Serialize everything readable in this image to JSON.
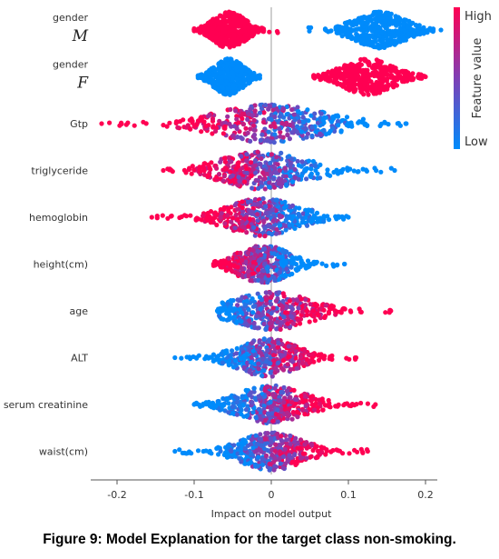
{
  "chart_data": {
    "type": "scatter",
    "subtype": "shap-beeswarm",
    "xlabel": "Impact on model output",
    "xlim": [
      -0.23,
      0.23
    ],
    "x_ticks": [
      -0.2,
      -0.1,
      0,
      0.1,
      0.2
    ],
    "x_tick_labels": [
      "-0.2",
      "-0.1",
      "0",
      "0.1",
      "0.2"
    ],
    "colorbar": {
      "title": "Feature value",
      "high": "High",
      "low": "Low",
      "high_color": "#ff0052",
      "low_color": "#008bfb"
    },
    "features": [
      {
        "label": "gender",
        "sub": "M",
        "clusters": [
          {
            "center": -0.055,
            "halfwidth": 0.045,
            "value": "high"
          },
          {
            "center": 0.14,
            "halfwidth": 0.07,
            "value": "low"
          }
        ],
        "min": -0.1,
        "max": 0.22
      },
      {
        "label": "gender",
        "sub": "F",
        "clusters": [
          {
            "center": -0.055,
            "halfwidth": 0.04,
            "value": "low"
          },
          {
            "center": 0.125,
            "halfwidth": 0.07,
            "value": "high"
          }
        ],
        "min": -0.09,
        "max": 0.2
      },
      {
        "label": "Gtp",
        "min": -0.22,
        "max": 0.175,
        "center": 0.0,
        "low_side": "right"
      },
      {
        "label": "triglyceride",
        "min": -0.14,
        "max": 0.16,
        "center": -0.01,
        "low_side": "right"
      },
      {
        "label": "hemoglobin",
        "min": -0.155,
        "max": 0.1,
        "center": -0.01,
        "low_side": "right"
      },
      {
        "label": "height(cm)",
        "min": -0.075,
        "max": 0.095,
        "center": -0.01,
        "low_side": "right"
      },
      {
        "label": "age",
        "min": -0.07,
        "max": 0.155,
        "center": 0.0,
        "low_side": "left"
      },
      {
        "label": "ALT",
        "min": -0.125,
        "max": 0.11,
        "center": -0.005,
        "low_side": "left"
      },
      {
        "label": "serum creatinine",
        "min": -0.1,
        "max": 0.135,
        "center": 0.0,
        "low_side": "left"
      },
      {
        "label": "waist(cm)",
        "min": -0.125,
        "max": 0.125,
        "center": 0.0,
        "low_side": "left"
      }
    ]
  },
  "caption": "Figure 9: Model Explanation for the target class non-smoking."
}
